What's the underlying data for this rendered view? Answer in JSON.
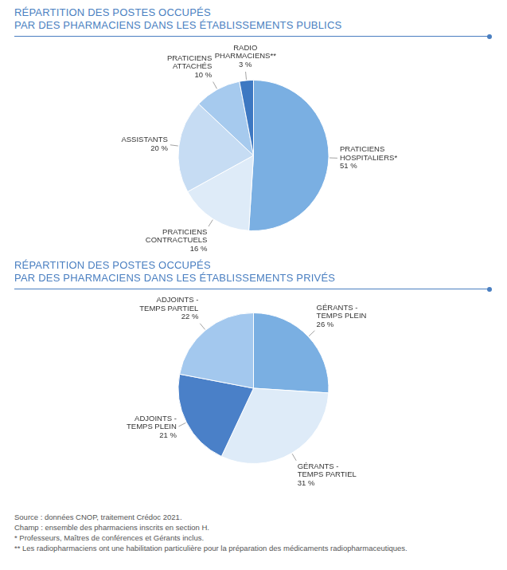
{
  "chart_data": [
    {
      "type": "pie",
      "title": [
        "RÉPARTITION DES POSTES OCCUPÉS",
        "PAR DES PHARMACIENS DANS LES ÉTABLISSEMENTS PUBLICS"
      ],
      "categories": [
        "PRATICIENS HOSPITALIERS*",
        "PRATICIENS CONTRACTUELS",
        "ASSISTANTS",
        "PRATICIENS ATTACHÉS",
        "RADIO PHARMACIENS**"
      ],
      "values": [
        51,
        16,
        20,
        10,
        3
      ],
      "value_labels": [
        "51 %",
        "16 %",
        "20 %",
        "10 %",
        "3 %"
      ],
      "colors": [
        "#7aafe2",
        "#deebf8",
        "#c6dcf3",
        "#a6caee",
        "#3d78c2"
      ],
      "data_labels": true
    },
    {
      "type": "pie",
      "title": [
        "RÉPARTITION DES POSTES OCCUPÉS",
        "PAR DES PHARMACIENS DANS LES ÉTABLISSEMENTS PRIVÉS"
      ],
      "categories": [
        "GÉRANTS - TEMPS PLEIN",
        "GÉRANTS - TEMPS PARTIEL",
        "ADJOINTS - TEMPS PLEIN",
        "ADJOINTS - TEMPS PARTIEL"
      ],
      "values": [
        26,
        31,
        21,
        22
      ],
      "value_labels": [
        "26 %",
        "31 %",
        "21 %",
        "22 %"
      ],
      "colors": [
        "#7aafe2",
        "#deebf8",
        "#4a80c8",
        "#a3c8ee"
      ],
      "data_labels": true
    }
  ],
  "notes": [
    "Source : données CNOP, traitement Crédoc 2021.",
    "Champ : ensemble des pharmaciens inscrits en section H.",
    "* Professeurs, Maîtres de conférences et Gérants inclus.",
    "** Les radiopharmaciens ont une habilitation particulière pour la préparation des médicaments radiopharmaceutiques."
  ]
}
